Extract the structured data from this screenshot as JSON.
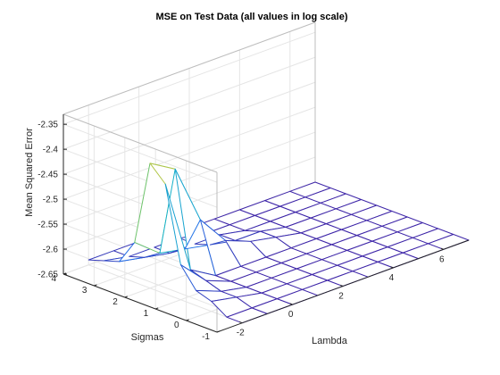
{
  "chart_data": {
    "type": "surface3d",
    "title": "MSE on Test Data (all values in log scale)",
    "xlabel": "Lambda",
    "ylabel": "Sigmas",
    "zlabel": "Mean Squared Error",
    "xlim": [
      -3,
      7
    ],
    "ylim": [
      -1,
      4
    ],
    "zlim": [
      -2.65,
      -2.33
    ],
    "x_ticks": [
      "-2",
      "0",
      "2",
      "4",
      "6"
    ],
    "y_ticks": [
      "-1",
      "0",
      "1",
      "2",
      "3",
      "4"
    ],
    "z_ticks": [
      "-2.35",
      "-2.4",
      "-2.45",
      "-2.5",
      "-2.55",
      "-2.6",
      "-2.65"
    ],
    "grid": true,
    "colormap": "parula",
    "colors": {
      "low": "#3e26a8",
      "mid_blue": "#1f6fe8",
      "cyan": "#15b4c8",
      "green": "#7cc55c",
      "yellow": "#f9e11e",
      "axis": "#262626",
      "grid": "#e5e5e5"
    },
    "lambda": [
      -2,
      -1,
      0,
      1,
      2,
      3,
      4,
      5,
      6,
      7
    ],
    "sigma": [
      -1,
      -0.5,
      0,
      0.5,
      1,
      1.5,
      2,
      2.5,
      3,
      3.5,
      4
    ],
    "mse": [
      [
        -2.65,
        -2.65,
        -2.65,
        -2.65,
        -2.65,
        -2.65,
        -2.65,
        -2.65,
        -2.65,
        -2.65
      ],
      [
        -2.65,
        -2.65,
        -2.65,
        -2.65,
        -2.65,
        -2.65,
        -2.65,
        -2.65,
        -2.65,
        -2.65
      ],
      [
        -2.63,
        -2.64,
        -2.65,
        -2.65,
        -2.65,
        -2.65,
        -2.65,
        -2.65,
        -2.65,
        -2.65
      ],
      [
        -2.62,
        -2.64,
        -2.65,
        -2.65,
        -2.65,
        -2.65,
        -2.65,
        -2.65,
        -2.65,
        -2.65
      ],
      [
        -2.58,
        -2.63,
        -2.65,
        -2.65,
        -2.65,
        -2.65,
        -2.65,
        -2.65,
        -2.65,
        -2.65
      ],
      [
        -2.43,
        -2.62,
        -2.65,
        -2.65,
        -2.65,
        -2.65,
        -2.65,
        -2.65,
        -2.65,
        -2.65
      ],
      [
        -2.4,
        -2.43,
        -2.55,
        -2.61,
        -2.63,
        -2.64,
        -2.65,
        -2.65,
        -2.65,
        -2.65
      ],
      [
        -2.57,
        -2.61,
        -2.62,
        -2.63,
        -2.64,
        -2.64,
        -2.65,
        -2.65,
        -2.65,
        -2.65
      ],
      [
        -2.62,
        -2.63,
        -2.64,
        -2.64,
        -2.64,
        -2.65,
        -2.65,
        -2.65,
        -2.65,
        -2.65
      ],
      [
        -2.63,
        -2.64,
        -2.64,
        -2.64,
        -2.65,
        -2.65,
        -2.65,
        -2.65,
        -2.65,
        -2.65
      ],
      [
        -2.64,
        -2.64,
        -2.64,
        -2.65,
        -2.65,
        -2.65,
        -2.65,
        -2.65,
        -2.65,
        -2.65
      ]
    ]
  }
}
